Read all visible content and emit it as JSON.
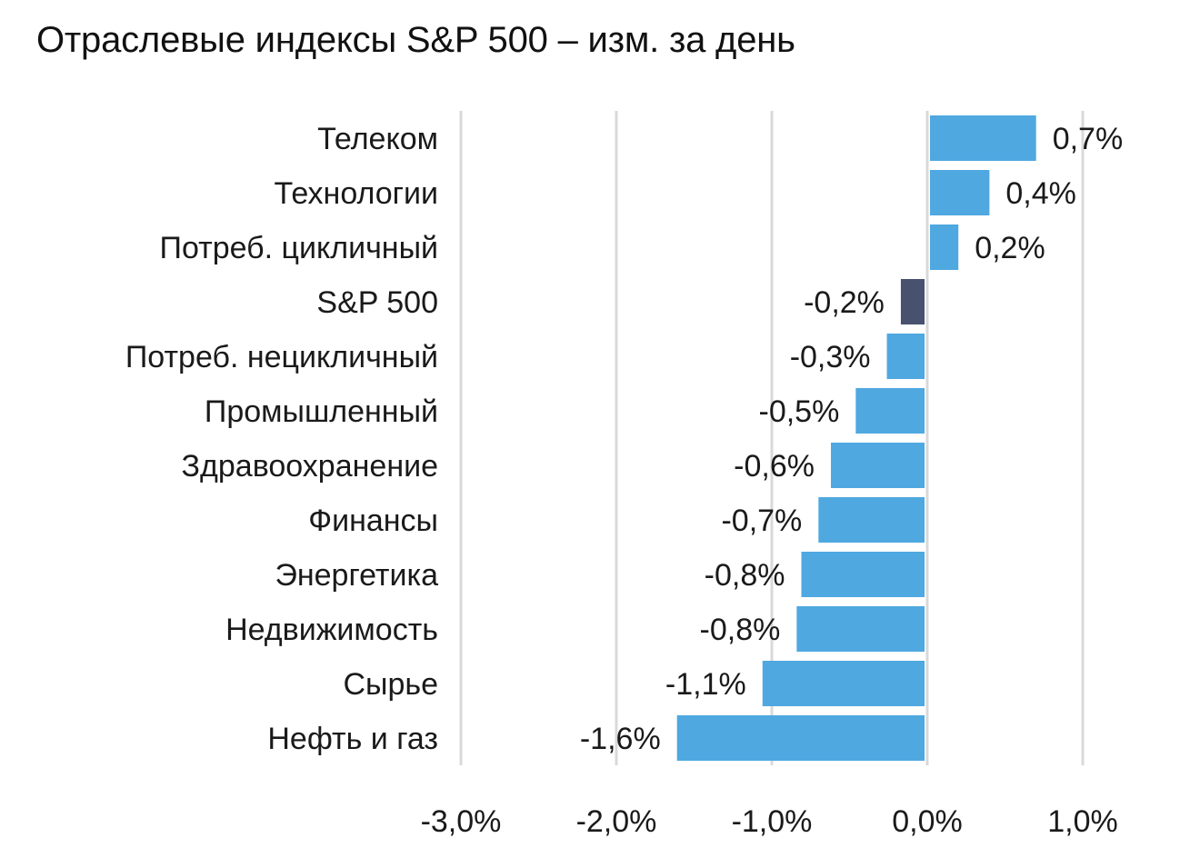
{
  "title": "Отраслевые индексы S&P 500 – изм. за день",
  "colors": {
    "bar": "#4fa8e0",
    "highlight": "#48516e",
    "grid": "#d9d9d9",
    "text": "#1a1a1a"
  },
  "chart_data": {
    "type": "bar",
    "orientation": "horizontal",
    "title": "Отраслевые индексы S&P 500 – изм. за день",
    "categories": [
      "Телеком",
      "Технологии",
      "Потреб. цикличный",
      "S&P 500",
      "Потреб. нецикличный",
      "Промышленный",
      "Здравоохранение",
      "Финансы",
      "Энергетика",
      "Недвижимость",
      "Сырье",
      "Нефть и газ"
    ],
    "values": [
      0.7,
      0.4,
      0.2,
      -0.17,
      -0.26,
      -0.46,
      -0.62,
      -0.7,
      -0.81,
      -0.84,
      -1.06,
      -1.61
    ],
    "value_labels": [
      "0,7%",
      "0,4%",
      "0,2%",
      "-0,2%",
      "-0,3%",
      "-0,5%",
      "-0,6%",
      "-0,7%",
      "-0,8%",
      "-0,8%",
      "-1,1%",
      "-1,6%"
    ],
    "highlight": [
      "S&P 500"
    ],
    "xlim": [
      -3.0,
      1.0
    ],
    "xticks": [
      -3.0,
      -2.0,
      -1.0,
      0.0,
      1.0
    ],
    "xtick_labels": [
      "-3,0%",
      "-2,0%",
      "-1,0%",
      "0,0%",
      "1,0%"
    ],
    "xlabel": "",
    "ylabel": "",
    "grid": "vertical",
    "legend": "none"
  }
}
